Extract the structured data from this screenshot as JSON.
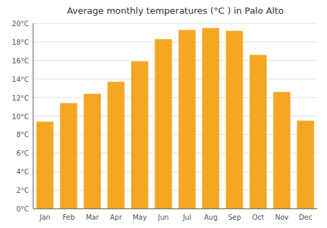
{
  "chart_data": {
    "type": "bar",
    "title": "Average monthly temperatures (°C ) in Palo Alto",
    "categories": [
      "Jan",
      "Feb",
      "Mar",
      "Apr",
      "May",
      "Jun",
      "Jul",
      "Aug",
      "Sep",
      "Oct",
      "Nov",
      "Dec"
    ],
    "values": [
      9.4,
      11.4,
      12.4,
      13.7,
      15.9,
      18.3,
      19.3,
      19.5,
      19.2,
      16.6,
      12.6,
      9.5
    ],
    "color": "#F5A623",
    "ylim": [
      0,
      20
    ],
    "yticks": [
      {
        "value": 0,
        "label": "0°C"
      },
      {
        "value": 2,
        "label": "2°C"
      },
      {
        "value": 4,
        "label": "4°C"
      },
      {
        "value": 6,
        "label": "6°C"
      },
      {
        "value": 8,
        "label": "8°C"
      },
      {
        "value": 10,
        "label": "10°C"
      },
      {
        "value": 12,
        "label": "12°C"
      },
      {
        "value": 14,
        "label": "14°C"
      },
      {
        "value": 16,
        "label": "16°C"
      },
      {
        "value": 18,
        "label": "18°C"
      },
      {
        "value": 20,
        "label": "20°C"
      }
    ],
    "grid": true
  }
}
